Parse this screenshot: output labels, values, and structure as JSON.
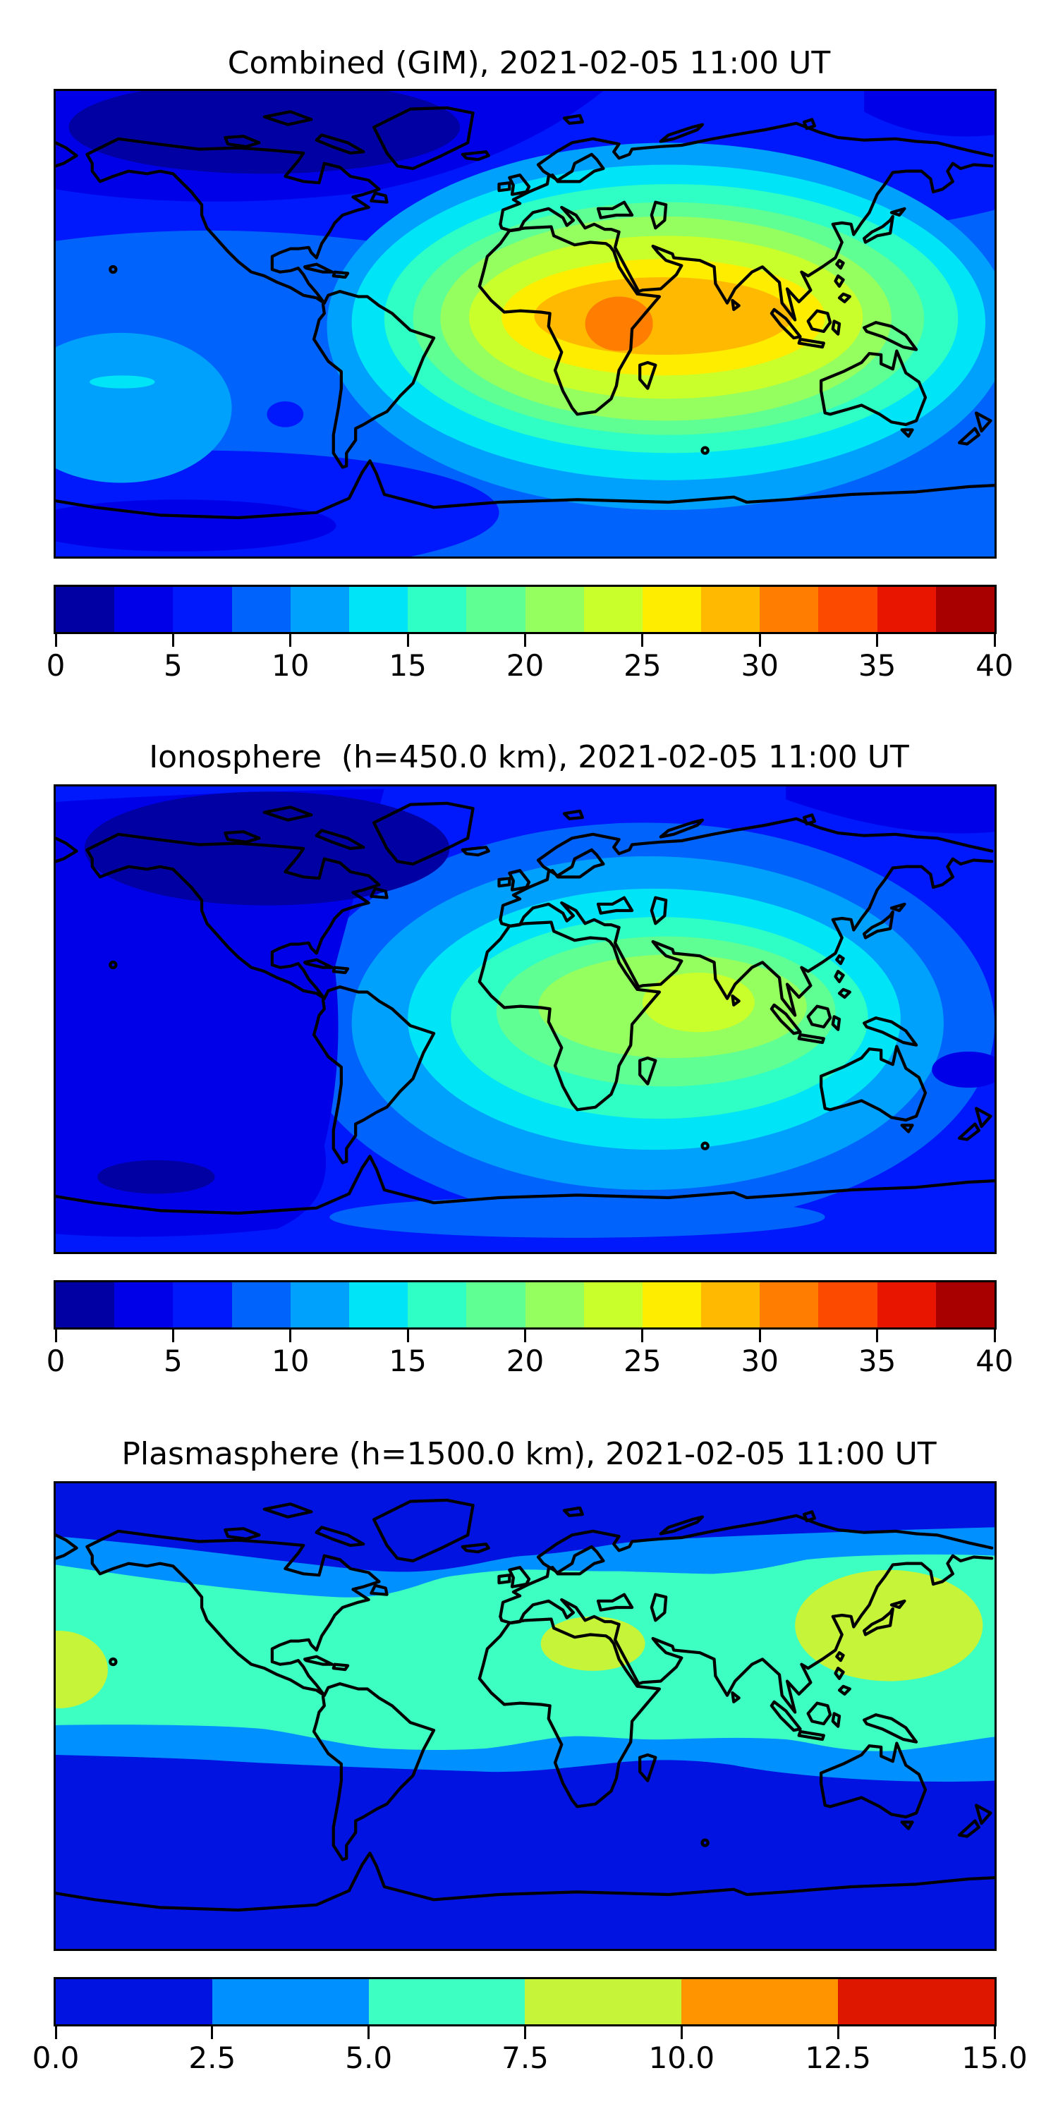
{
  "figure": {
    "background": "#ffffff",
    "text_color": "#000000",
    "coastline_color": "#000000",
    "palette16": [
      "#0000A3",
      "#0000E8",
      "#0018FC",
      "#0063FC",
      "#00A1FC",
      "#00E4F8",
      "#2FFFC4",
      "#5FFF94",
      "#94FF5F",
      "#C9FF2A",
      "#FFED00",
      "#FFB900",
      "#FF7D00",
      "#FC4A00",
      "#E81600",
      "#A80000"
    ],
    "palette6": [
      "#0013E0",
      "#0090FF",
      "#3DFFC2",
      "#C6F438",
      "#FF9400",
      "#DD1700"
    ],
    "panels": [
      {
        "title": "Combined (GIM), 2021-02-05 11:00 UT",
        "colorbar": {
          "palette": "palette16",
          "segments": 16,
          "ticks": [
            "0",
            "5",
            "10",
            "15",
            "20",
            "25",
            "30",
            "35",
            "40"
          ]
        }
      },
      {
        "title": "Ionosphere  (h=450.0 km), 2021-02-05 11:00 UT",
        "colorbar": {
          "palette": "palette16",
          "segments": 16,
          "ticks": [
            "0",
            "5",
            "10",
            "15",
            "20",
            "25",
            "30",
            "35",
            "40"
          ]
        }
      },
      {
        "title": "Plasmasphere (h=1500.0 km), 2021-02-05 11:00 UT",
        "colorbar": {
          "palette": "palette6",
          "segments": 6,
          "ticks": [
            "0.0",
            "2.5",
            "5.0",
            "7.5",
            "10.0",
            "12.5",
            "15.0"
          ]
        }
      }
    ]
  },
  "chart_data": [
    {
      "type": "heatmap",
      "subtype": "filled_contour_world_map",
      "title": "Combined (GIM), 2021-02-05 11:00 UT",
      "timestamp": "2021-02-05 11:00 UT",
      "colormap": "jet, 16 discrete levels",
      "projection": "equirectangular, lon -180..180, lat -90..90",
      "value_range": [
        0,
        40
      ],
      "level_step": 2.5,
      "colorbar_ticks": [
        0,
        5,
        10,
        15,
        20,
        25,
        30,
        35,
        40
      ],
      "peak_value_estimate": 32,
      "peak_location": "equatorial east Africa (~5S, 30-40E), enhancement extending east across Indian Ocean to India and SE Asia",
      "minimum_value_estimate": 2,
      "minimum_location": "high northern latitudes over North America / Arctic and a patch in the far southern Pacific",
      "features": [
        "single large daytime ionization enhancement centered over Africa/Indian Ocean",
        "concentric rings stepping 2.5 units from ~5 (blue) to ~32 (deep orange core)",
        "dark-navy minimum band across the upper-left (nightside high latitudes)"
      ]
    },
    {
      "type": "heatmap",
      "subtype": "filled_contour_world_map",
      "title": "Ionosphere  (h=450.0 km), 2021-02-05 11:00 UT",
      "timestamp": "2021-02-05 11:00 UT",
      "colormap": "jet, 16 discrete levels",
      "projection": "equirectangular, lon -180..180, lat -90..90",
      "value_range": [
        0,
        40
      ],
      "level_step": 2.5,
      "colorbar_ticks": [
        0,
        5,
        10,
        15,
        20,
        25,
        30,
        35,
        40
      ],
      "peak_value_estimate": 25,
      "peak_location": "western Indian Ocean east of Africa (~5S, 50-70E)",
      "minimum_value_estimate": 1,
      "minimum_location": "Americas sector and Arctic (dark navy region upper-left, small minimum lower-left)",
      "features": [
        "same enhancement as combined map but weaker (peak yellow-green ~22.5-25)",
        "broad dark blue background over Pacific/Americas",
        "lighter band along Antarctic coast"
      ]
    },
    {
      "type": "heatmap",
      "subtype": "filled_contour_world_map",
      "title": "Plasmasphere (h=1500.0 km), 2021-02-05 11:00 UT",
      "timestamp": "2021-02-05 11:00 UT",
      "colormap": "jet, 6 discrete levels",
      "projection": "equirectangular, lon -180..180, lat -90..90",
      "value_range": [
        0,
        15
      ],
      "level_step": 2.5,
      "colorbar_ticks": [
        0.0,
        2.5,
        5.0,
        7.5,
        10.0,
        12.5,
        15.0
      ],
      "peak_value_estimate": 9,
      "peak_location": "patches 7.5-10 over central Africa, western Pacific / maritime SE Asia, and eastern equatorial Pacific at the left edge",
      "minimum_value_estimate": 1,
      "minimum_location": "polar caps north and south (0-2.5 band)",
      "features": [
        "zonal banded structure: <2.5 at high latitudes, 2.5-5 mid-latitude band, 5-7.5 wide equatorial band",
        "three 7.5-10 yellow-green enhancements along the equator"
      ]
    }
  ]
}
